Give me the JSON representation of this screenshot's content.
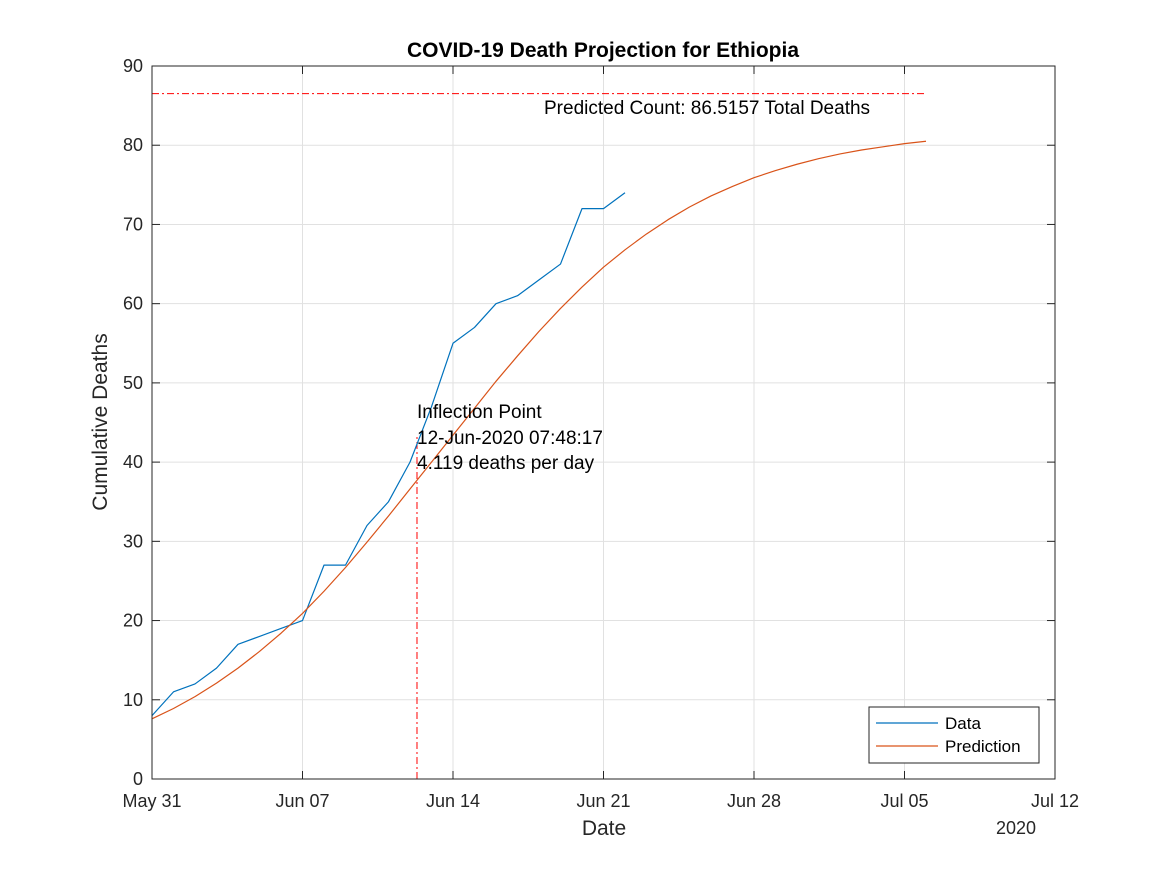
{
  "chart_data": {
    "type": "line",
    "title": "COVID-19 Death Projection for Ethiopia",
    "xlabel": "Date",
    "ylabel": "Cumulative Deaths",
    "x_year_label": "2020",
    "xlim": [
      "2020-05-31",
      "2020-07-12"
    ],
    "ylim": [
      0,
      90
    ],
    "x_ticks": [
      "2020-05-31",
      "2020-06-07",
      "2020-06-14",
      "2020-06-21",
      "2020-06-28",
      "2020-07-05",
      "2020-07-12"
    ],
    "x_tick_labels": [
      "May 31",
      "Jun 07",
      "Jun 14",
      "Jun 21",
      "Jun 28",
      "Jul 05",
      "Jul 12"
    ],
    "y_ticks": [
      0,
      10,
      20,
      30,
      40,
      50,
      60,
      70,
      80,
      90
    ],
    "y_tick_labels": [
      "0",
      "10",
      "20",
      "30",
      "40",
      "50",
      "60",
      "70",
      "80",
      "90"
    ],
    "grid": true,
    "legend_position": "bottom-right",
    "series": [
      {
        "name": "Data",
        "color": "#0072BD",
        "x": [
          "2020-05-31",
          "2020-06-01",
          "2020-06-02",
          "2020-06-03",
          "2020-06-04",
          "2020-06-05",
          "2020-06-06",
          "2020-06-07",
          "2020-06-08",
          "2020-06-09",
          "2020-06-10",
          "2020-06-11",
          "2020-06-12",
          "2020-06-13",
          "2020-06-14",
          "2020-06-15",
          "2020-06-16",
          "2020-06-17",
          "2020-06-18",
          "2020-06-19",
          "2020-06-20",
          "2020-06-21",
          "2020-06-22"
        ],
        "values": [
          8,
          11,
          12,
          14,
          17,
          18,
          19,
          20,
          27,
          27,
          32,
          35,
          40,
          47,
          55,
          57,
          60,
          61,
          63,
          65,
          72,
          72,
          74
        ]
      },
      {
        "name": "Prediction",
        "color": "#D95319",
        "x": [
          "2020-05-31",
          "2020-06-01",
          "2020-06-02",
          "2020-06-03",
          "2020-06-04",
          "2020-06-05",
          "2020-06-06",
          "2020-06-07",
          "2020-06-08",
          "2020-06-09",
          "2020-06-10",
          "2020-06-11",
          "2020-06-12",
          "2020-06-13",
          "2020-06-14",
          "2020-06-15",
          "2020-06-16",
          "2020-06-17",
          "2020-06-18",
          "2020-06-19",
          "2020-06-20",
          "2020-06-21",
          "2020-06-22",
          "2020-06-23",
          "2020-06-24",
          "2020-06-25",
          "2020-06-26",
          "2020-06-27",
          "2020-06-28",
          "2020-06-29",
          "2020-06-30",
          "2020-07-01",
          "2020-07-02",
          "2020-07-03",
          "2020-07-04",
          "2020-07-05",
          "2020-07-06"
        ],
        "values": [
          7.6,
          8.9,
          10.4,
          12.1,
          14.0,
          16.1,
          18.4,
          20.9,
          23.7,
          26.7,
          29.9,
          33.2,
          36.6,
          40.0,
          43.4,
          46.8,
          50.2,
          53.4,
          56.5,
          59.4,
          62.1,
          64.6,
          66.8,
          68.8,
          70.6,
          72.2,
          73.6,
          74.8,
          75.9,
          76.8,
          77.6,
          78.3,
          78.9,
          79.4,
          79.8,
          80.2,
          80.5
        ]
      }
    ],
    "reference_lines": [
      {
        "orientation": "horizontal",
        "y": 86.5157,
        "x_start": "2020-05-31",
        "x_end": "2020-07-06",
        "color": "#FF0000",
        "style": "dash-dot"
      },
      {
        "orientation": "vertical",
        "x": "2020-06-12T07:48:17",
        "y_start": 0,
        "y_end": 43.26,
        "color": "#FF0000",
        "style": "dash-dot"
      }
    ],
    "annotations": {
      "predicted_count": "Predicted Count: 86.5157 Total Deaths",
      "inflection_title": "Inflection Point",
      "inflection_time": "12-Jun-2020 07:48:17",
      "inflection_rate": "4.119 deaths per day"
    },
    "legend": [
      "Data",
      "Prediction"
    ]
  }
}
